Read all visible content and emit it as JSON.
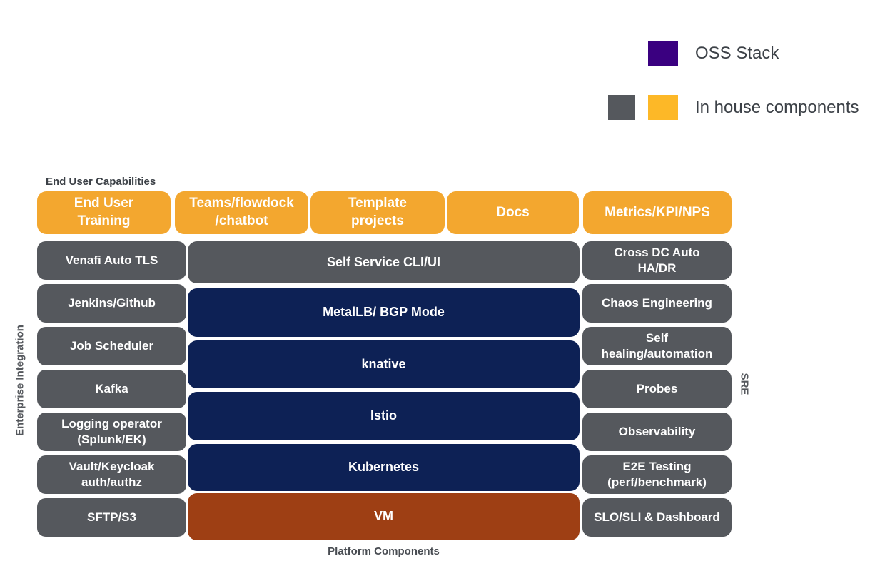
{
  "legend": {
    "oss": {
      "label": "OSS Stack",
      "swatch_color": "#3A0080"
    },
    "inhouse": {
      "label": "In house components",
      "swatch_gray": "#55585D",
      "swatch_orange": "#FDB827"
    }
  },
  "section_labels": {
    "top": "End User Capabilities",
    "bottom": "Platform Components",
    "left_vertical": "Enterprise Integration",
    "right_vertical": "SRE"
  },
  "capabilities": [
    {
      "label": "End User\nTraining"
    },
    {
      "label": "Teams/flowdock\n/chatbot"
    },
    {
      "label": "Template\nprojects"
    },
    {
      "label": "Docs"
    },
    {
      "label": "Metrics/KPI/NPS"
    }
  ],
  "enterprise_integration": [
    {
      "label": "Venafi Auto TLS"
    },
    {
      "label": "Jenkins/Github"
    },
    {
      "label": "Job Scheduler"
    },
    {
      "label": "Kafka"
    },
    {
      "label": "Logging operator\n(Splunk/EK)"
    },
    {
      "label": "Vault/Keycloak\nauth/authz"
    },
    {
      "label": "SFTP/S3"
    }
  ],
  "platform_core": [
    {
      "label": "Self Service CLI/UI",
      "category": "in-house"
    },
    {
      "label": "MetalLB/ BGP Mode",
      "category": "oss"
    },
    {
      "label": "knative",
      "category": "oss"
    },
    {
      "label": "Istio",
      "category": "oss"
    },
    {
      "label": "Kubernetes",
      "category": "oss"
    },
    {
      "label": "VM",
      "category": "vm"
    }
  ],
  "sre": [
    {
      "label": "Cross DC Auto\nHA/DR"
    },
    {
      "label": "Chaos Engineering"
    },
    {
      "label": "Self\nhealing/automation"
    },
    {
      "label": "Probes"
    },
    {
      "label": "Observability"
    },
    {
      "label": "E2E Testing\n(perf/benchmark)"
    },
    {
      "label": "SLO/SLI & Dashboard"
    }
  ],
  "colors": {
    "inhouse_orange": "#F3A72F",
    "inhouse_gray": "#55585D",
    "oss_navy": "#0D2155",
    "vm_rust": "#9E3F14"
  }
}
